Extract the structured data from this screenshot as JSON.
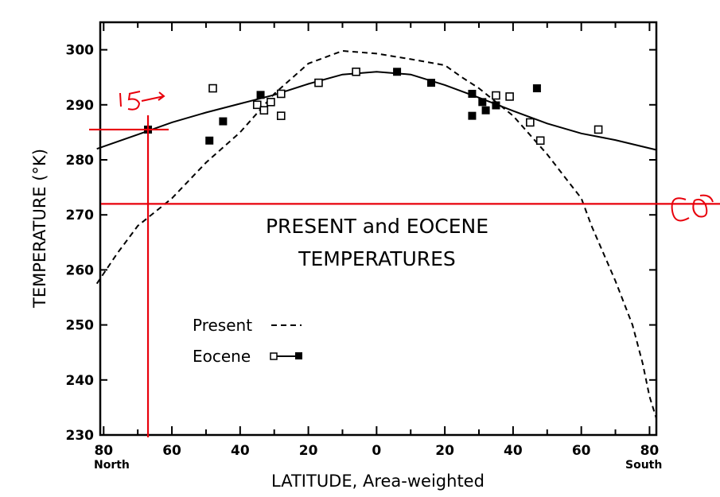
{
  "chart_data": {
    "type": "scatter",
    "title_lines": [
      "PRESENT and EOCENE",
      "TEMPERATURES"
    ],
    "xlabel": "LATITUDE, Area-weighted",
    "ylabel": "TEMPERATURE (°K)",
    "ylim": [
      230,
      305
    ],
    "xlim": [
      -81,
      82
    ],
    "x_domain_note_labels": {
      "left": "North",
      "right": "South"
    },
    "y_ticks": [
      230,
      240,
      250,
      260,
      270,
      280,
      290,
      300
    ],
    "x_ticks": [
      -80,
      -60,
      -40,
      -20,
      0,
      20,
      40,
      60,
      80
    ],
    "x_tick_labels": [
      "80",
      "60",
      "40",
      "20",
      "0",
      "20",
      "40",
      "60",
      "80"
    ],
    "legend": [
      {
        "label": "Present",
        "style": "dashed"
      },
      {
        "label": "Eocene",
        "style": "line-with-open-and-filled-squares"
      }
    ],
    "series": [
      {
        "name": "Present",
        "kind": "dashed-line",
        "x": [
          -82,
          -76,
          -70,
          -60,
          -50,
          -40,
          -30,
          -20,
          -10,
          0,
          10,
          20,
          25,
          30,
          40,
          50,
          55,
          60,
          63,
          70,
          75,
          78,
          80,
          82
        ],
        "y": [
          257.5,
          263,
          268,
          273,
          279.5,
          285,
          292,
          297.5,
          299.8,
          299.3,
          298.3,
          297.2,
          295,
          293,
          288,
          281,
          277,
          273,
          268,
          258,
          250,
          243,
          237,
          233
        ]
      },
      {
        "name": "Eocene",
        "kind": "solid-line",
        "x": [
          -82,
          -70,
          -60,
          -50,
          -40,
          -30,
          -20,
          -10,
          0,
          10,
          20,
          30,
          40,
          50,
          60,
          70,
          82
        ],
        "y": [
          282,
          284.6,
          286.8,
          288.6,
          290.2,
          291.8,
          293.8,
          295.5,
          296,
          295.5,
          293.6,
          291.3,
          288.9,
          286.6,
          284.8,
          283.6,
          281.8
        ]
      },
      {
        "name": "Eocene open",
        "kind": "open-squares",
        "x": [
          -48,
          -35,
          -33,
          -31,
          -28,
          -28,
          -17,
          -6,
          39,
          35,
          45,
          48,
          65
        ],
        "y": [
          293,
          290,
          289,
          290.5,
          292,
          288,
          294,
          296,
          291.5,
          291.7,
          286.8,
          283.5,
          285.5
        ]
      },
      {
        "name": "Eocene filled",
        "kind": "filled-squares",
        "x": [
          -67,
          -49,
          -45,
          -34,
          6,
          16,
          28,
          28,
          31,
          32,
          35,
          47
        ],
        "y": [
          285.5,
          283.5,
          287,
          291.8,
          296,
          294,
          292,
          288,
          290.5,
          289,
          289.9,
          293
        ]
      }
    ],
    "annotations": {
      "handwritten_15": "15",
      "handwritten_right": "0°",
      "red_lines": {
        "vertical_at_x": -67,
        "horizontal_long_at_y": 272,
        "horizontal_short_at_y": 285.5
      }
    }
  }
}
